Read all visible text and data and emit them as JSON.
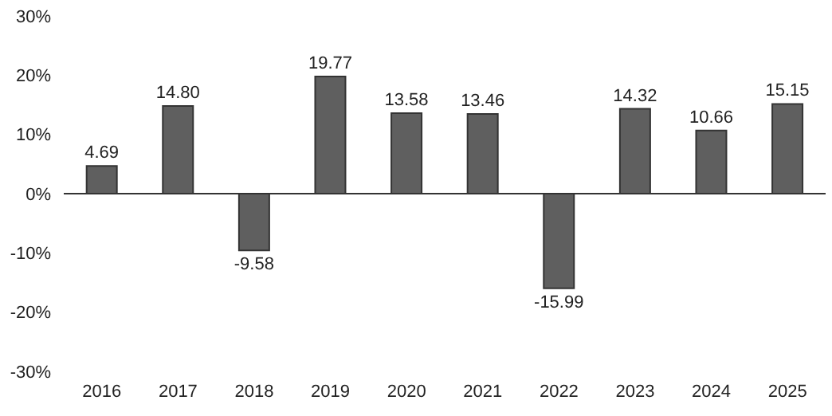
{
  "chart_data": {
    "type": "bar",
    "categories": [
      "2016",
      "2017",
      "2018",
      "2019",
      "2020",
      "2021",
      "2022",
      "2023",
      "2024",
      "2025"
    ],
    "values": [
      4.69,
      14.8,
      -9.58,
      19.77,
      13.58,
      13.46,
      -15.99,
      14.32,
      10.66,
      15.15
    ],
    "value_labels": [
      "4.69",
      "14.80",
      "-9.58",
      "19.77",
      "13.58",
      "13.46",
      "-15.99",
      "14.32",
      "10.66",
      "15.15"
    ],
    "color": "#5f5f5f",
    "ylim": [
      -30,
      30
    ],
    "yticks": [
      {
        "value": -30,
        "label": "-30%"
      },
      {
        "value": -20,
        "label": "-20%"
      },
      {
        "value": -10,
        "label": "-10%"
      },
      {
        "value": 0,
        "label": "0%"
      },
      {
        "value": 10,
        "label": "10%"
      },
      {
        "value": 20,
        "label": "20%"
      },
      {
        "value": 30,
        "label": "30%"
      }
    ],
    "ref_lines": [
      {
        "axis": "y",
        "value": 0,
        "color": "#333333"
      }
    ],
    "legend": false
  }
}
